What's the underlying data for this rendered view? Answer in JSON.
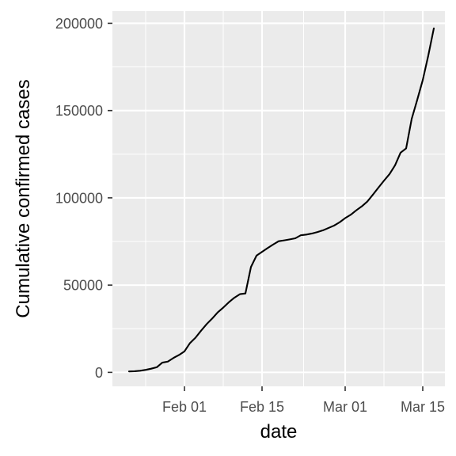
{
  "chart_data": {
    "type": "line",
    "title": "",
    "xlabel": "date",
    "ylabel": "Cumulative confirmed cases",
    "x_ticks": [
      {
        "date": "2020-02-01",
        "label": "Feb 01"
      },
      {
        "date": "2020-02-15",
        "label": "Feb 15"
      },
      {
        "date": "2020-03-01",
        "label": "Mar 01"
      },
      {
        "date": "2020-03-15",
        "label": "Mar 15"
      }
    ],
    "xlim": [
      "2020-01-19",
      "2020-03-19"
    ],
    "y_ticks": [
      {
        "value": 0,
        "label": "0"
      },
      {
        "value": 50000,
        "label": "50000"
      },
      {
        "value": 100000,
        "label": "100000"
      },
      {
        "value": 150000,
        "label": "150000"
      },
      {
        "value": 200000,
        "label": "200000"
      }
    ],
    "ylim": [
      -8000,
      207000
    ],
    "grid": true,
    "legend": "none",
    "colors": {
      "panel": "#ebebeb",
      "grid_major": "#ffffff",
      "line": "#000000",
      "axis_text": "#4d4d4d"
    },
    "series": [
      {
        "x": [
          "2020-01-22",
          "2020-01-23",
          "2020-01-24",
          "2020-01-25",
          "2020-01-26",
          "2020-01-27",
          "2020-01-28",
          "2020-01-29",
          "2020-01-30",
          "2020-01-31",
          "2020-02-01",
          "2020-02-02",
          "2020-02-03",
          "2020-02-04",
          "2020-02-05",
          "2020-02-06",
          "2020-02-07",
          "2020-02-08",
          "2020-02-09",
          "2020-02-10",
          "2020-02-11",
          "2020-02-12",
          "2020-02-13",
          "2020-02-14",
          "2020-02-15",
          "2020-02-16",
          "2020-02-17",
          "2020-02-18",
          "2020-02-19",
          "2020-02-20",
          "2020-02-21",
          "2020-02-22",
          "2020-02-23",
          "2020-02-24",
          "2020-02-25",
          "2020-02-26",
          "2020-02-27",
          "2020-02-28",
          "2020-02-29",
          "2020-03-01",
          "2020-03-02",
          "2020-03-03",
          "2020-03-04",
          "2020-03-05",
          "2020-03-06",
          "2020-03-07",
          "2020-03-08",
          "2020-03-09",
          "2020-03-10",
          "2020-03-11",
          "2020-03-12",
          "2020-03-13",
          "2020-03-14",
          "2020-03-15",
          "2020-03-16",
          "2020-03-17"
        ],
        "y": [
          555,
          654,
          941,
          1434,
          2118,
          2927,
          5578,
          6166,
          8234,
          9927,
          12038,
          16787,
          19881,
          23892,
          27635,
          30817,
          34391,
          37120,
          40150,
          42762,
          44802,
          45221,
          60368,
          66885,
          69030,
          71224,
          73258,
          75136,
          75639,
          76197,
          76819,
          78572,
          78958,
          79561,
          80406,
          81388,
          82746,
          84112,
          86011,
          88369,
          90306,
          92840,
          95120,
          97886,
          101801,
          105847,
          109821,
          113590,
          118620,
          125875,
          128343,
          145193,
          156097,
          167449,
          181546,
          197102
        ]
      }
    ]
  }
}
